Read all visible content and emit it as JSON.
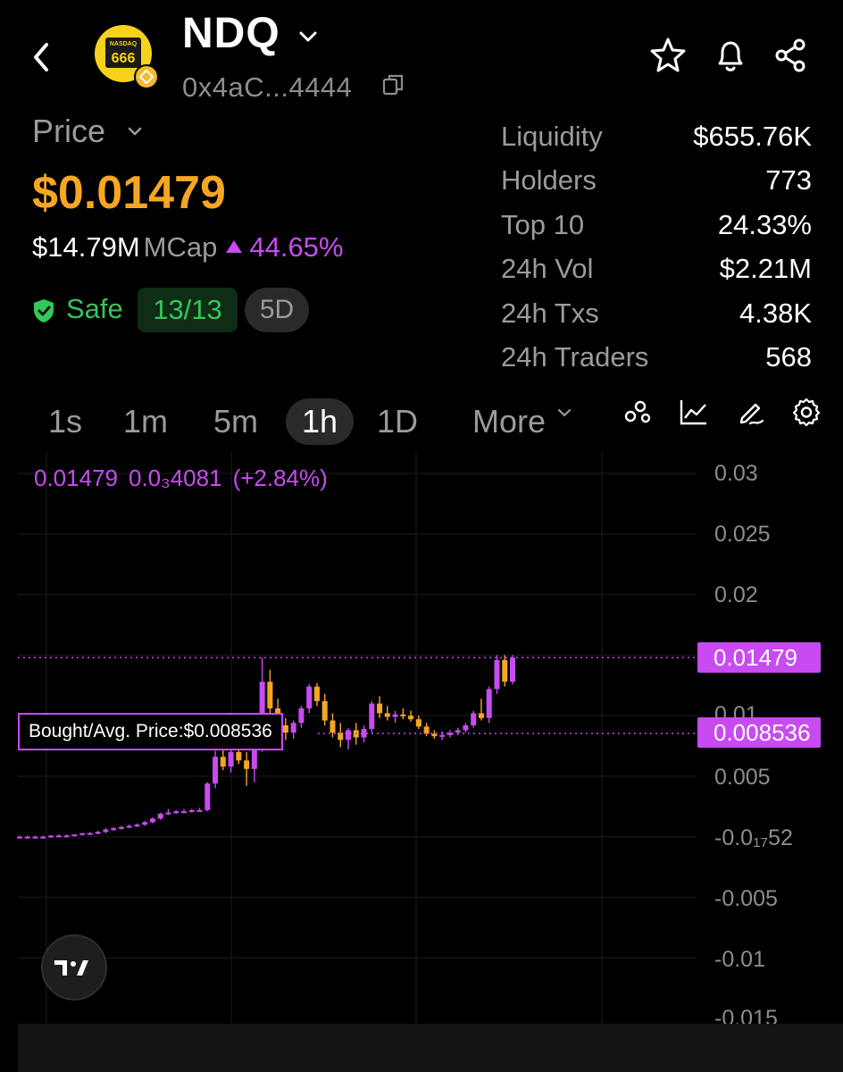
{
  "header": {
    "ticker": "NDQ",
    "address": "0x4aC...4444",
    "logo_top": "NASDAQ",
    "logo_num": "666",
    "icons": [
      "back-icon",
      "chevron-down-icon",
      "copy-icon",
      "star-icon",
      "bell-icon",
      "share-icon"
    ]
  },
  "price": {
    "label": "Price",
    "value": "$0.01479",
    "mcap_value": "$14.79M",
    "mcap_label": "MCap",
    "change": "44.65%",
    "safe_label": "Safe",
    "score": "13/13",
    "age": "5D"
  },
  "stats": [
    {
      "label": "Liquidity",
      "value": "$655.76K"
    },
    {
      "label": "Holders",
      "value": "773"
    },
    {
      "label": "Top 10",
      "value": "24.33%"
    },
    {
      "label": "24h Vol",
      "value": "$2.21M"
    },
    {
      "label": "24h Txs",
      "value": "4.38K"
    },
    {
      "label": "24h Traders",
      "value": "568"
    }
  ],
  "timeframes": {
    "tabs": [
      "1s",
      "1m",
      "5m",
      "1h",
      "1D"
    ],
    "active": "1h",
    "more_label": "More",
    "tool_icons": [
      "indicators-icon",
      "line-chart-icon",
      "draw-icon",
      "settings-icon"
    ]
  },
  "chart_overlay": {
    "last": "0.01479",
    "change_abs": "0.0₃4081",
    "change_pct": "(+2.84%)",
    "current_tag": "0.01479",
    "bought_tag": "0.008536",
    "bought_label": "Bought/Avg. Price:$0.008536"
  },
  "colors": {
    "up": "#c84bf1",
    "down": "#f5a623",
    "price": "#f5a623",
    "safe": "#34c759"
  },
  "chart_data": {
    "type": "candlestick",
    "y_tick_labels": [
      "0.03",
      "0.025",
      "0.02",
      "0.01479",
      "0.01",
      "0.005",
      "-0.0₁₇52",
      "-0.005",
      "-0.01",
      "-0.015"
    ],
    "ylim": [
      -0.015,
      0.03
    ],
    "grid": true,
    "reference_lines": [
      {
        "label": "0.01479",
        "value": 0.01479
      },
      {
        "label": "Bought/Avg. Price:$0.008536",
        "value": 0.008536
      }
    ],
    "candles": [
      {
        "o": 0.0,
        "h": 0.0001,
        "l": -0.0001,
        "c": 0.0
      },
      {
        "o": 0.0,
        "h": 0.0001,
        "l": -0.0001,
        "c": 0.0
      },
      {
        "o": 0.0,
        "h": 0.0001,
        "l": -0.0001,
        "c": 0.0
      },
      {
        "o": 0.0,
        "h": 0.0001,
        "l": -0.0001,
        "c": 0.0
      },
      {
        "o": 0.0,
        "h": 0.0001,
        "l": -0.0001,
        "c": 0.0001
      },
      {
        "o": 0.0001,
        "h": 0.0002,
        "l": 0.0,
        "c": 0.0001
      },
      {
        "o": 0.0001,
        "h": 0.0002,
        "l": 0.0,
        "c": 0.0001
      },
      {
        "o": 0.0001,
        "h": 0.0002,
        "l": 0.0,
        "c": 0.0002
      },
      {
        "o": 0.0002,
        "h": 0.0003,
        "l": 0.0001,
        "c": 0.0003
      },
      {
        "o": 0.0003,
        "h": 0.0004,
        "l": 0.0002,
        "c": 0.0003
      },
      {
        "o": 0.0003,
        "h": 0.0005,
        "l": 0.0002,
        "c": 0.0004
      },
      {
        "o": 0.0004,
        "h": 0.0007,
        "l": 0.0003,
        "c": 0.0006
      },
      {
        "o": 0.0006,
        "h": 0.0008,
        "l": 0.0005,
        "c": 0.0007
      },
      {
        "o": 0.0007,
        "h": 0.0009,
        "l": 0.0006,
        "c": 0.0008
      },
      {
        "o": 0.0008,
        "h": 0.001,
        "l": 0.0007,
        "c": 0.0009
      },
      {
        "o": 0.0009,
        "h": 0.0011,
        "l": 0.0008,
        "c": 0.001
      },
      {
        "o": 0.001,
        "h": 0.0013,
        "l": 0.0009,
        "c": 0.0012
      },
      {
        "o": 0.0012,
        "h": 0.0016,
        "l": 0.0011,
        "c": 0.0015
      },
      {
        "o": 0.0015,
        "h": 0.002,
        "l": 0.0014,
        "c": 0.0019
      },
      {
        "o": 0.0019,
        "h": 0.0023,
        "l": 0.0018,
        "c": 0.002
      },
      {
        "o": 0.002,
        "h": 0.0022,
        "l": 0.0019,
        "c": 0.0021
      },
      {
        "o": 0.0021,
        "h": 0.0023,
        "l": 0.002,
        "c": 0.0021
      },
      {
        "o": 0.0021,
        "h": 0.0023,
        "l": 0.002,
        "c": 0.0022
      },
      {
        "o": 0.0022,
        "h": 0.0024,
        "l": 0.0021,
        "c": 0.0022
      },
      {
        "o": 0.0022,
        "h": 0.0045,
        "l": 0.0021,
        "c": 0.0044
      },
      {
        "o": 0.0044,
        "h": 0.0071,
        "l": 0.004,
        "c": 0.0066
      },
      {
        "o": 0.0066,
        "h": 0.0075,
        "l": 0.0055,
        "c": 0.0058
      },
      {
        "o": 0.0058,
        "h": 0.0072,
        "l": 0.0053,
        "c": 0.007
      },
      {
        "o": 0.007,
        "h": 0.0076,
        "l": 0.006,
        "c": 0.0063
      },
      {
        "o": 0.0063,
        "h": 0.007,
        "l": 0.0042,
        "c": 0.0056
      },
      {
        "o": 0.0056,
        "h": 0.0074,
        "l": 0.0045,
        "c": 0.0072
      },
      {
        "o": 0.0072,
        "h": 0.0148,
        "l": 0.007,
        "c": 0.0128
      },
      {
        "o": 0.0128,
        "h": 0.0138,
        "l": 0.01,
        "c": 0.0106
      },
      {
        "o": 0.0106,
        "h": 0.0114,
        "l": 0.0088,
        "c": 0.0092
      },
      {
        "o": 0.0092,
        "h": 0.0098,
        "l": 0.008,
        "c": 0.0086
      },
      {
        "o": 0.0086,
        "h": 0.0096,
        "l": 0.0081,
        "c": 0.0094
      },
      {
        "o": 0.0094,
        "h": 0.0108,
        "l": 0.009,
        "c": 0.0106
      },
      {
        "o": 0.0106,
        "h": 0.0126,
        "l": 0.0102,
        "c": 0.0124
      },
      {
        "o": 0.0124,
        "h": 0.0127,
        "l": 0.0108,
        "c": 0.0112
      },
      {
        "o": 0.0112,
        "h": 0.0118,
        "l": 0.0092,
        "c": 0.0096
      },
      {
        "o": 0.0096,
        "h": 0.0102,
        "l": 0.0082,
        "c": 0.0086
      },
      {
        "o": 0.0086,
        "h": 0.0094,
        "l": 0.0074,
        "c": 0.008
      },
      {
        "o": 0.008,
        "h": 0.009,
        "l": 0.0072,
        "c": 0.0088
      },
      {
        "o": 0.0088,
        "h": 0.0094,
        "l": 0.0076,
        "c": 0.0082
      },
      {
        "o": 0.0082,
        "h": 0.0092,
        "l": 0.0078,
        "c": 0.0089
      },
      {
        "o": 0.0089,
        "h": 0.0112,
        "l": 0.0086,
        "c": 0.011
      },
      {
        "o": 0.011,
        "h": 0.0116,
        "l": 0.0098,
        "c": 0.0102
      },
      {
        "o": 0.0102,
        "h": 0.0108,
        "l": 0.0096,
        "c": 0.0099
      },
      {
        "o": 0.0099,
        "h": 0.0104,
        "l": 0.0094,
        "c": 0.0101
      },
      {
        "o": 0.0101,
        "h": 0.0106,
        "l": 0.0097,
        "c": 0.01
      },
      {
        "o": 0.01,
        "h": 0.0104,
        "l": 0.0095,
        "c": 0.0097
      },
      {
        "o": 0.0097,
        "h": 0.01,
        "l": 0.0089,
        "c": 0.0091
      },
      {
        "o": 0.0091,
        "h": 0.0094,
        "l": 0.0083,
        "c": 0.0085
      },
      {
        "o": 0.0085,
        "h": 0.0088,
        "l": 0.0081,
        "c": 0.0083
      },
      {
        "o": 0.0083,
        "h": 0.0087,
        "l": 0.008,
        "c": 0.0084
      },
      {
        "o": 0.0084,
        "h": 0.0088,
        "l": 0.0082,
        "c": 0.0086
      },
      {
        "o": 0.0086,
        "h": 0.009,
        "l": 0.0084,
        "c": 0.0088
      },
      {
        "o": 0.0088,
        "h": 0.0094,
        "l": 0.0086,
        "c": 0.0092
      },
      {
        "o": 0.0092,
        "h": 0.0104,
        "l": 0.009,
        "c": 0.0102
      },
      {
        "o": 0.0102,
        "h": 0.0114,
        "l": 0.0096,
        "c": 0.0098
      },
      {
        "o": 0.0098,
        "h": 0.0124,
        "l": 0.0094,
        "c": 0.0122
      },
      {
        "o": 0.0122,
        "h": 0.015,
        "l": 0.0118,
        "c": 0.0146
      },
      {
        "o": 0.0146,
        "h": 0.015,
        "l": 0.0124,
        "c": 0.0128
      },
      {
        "o": 0.0128,
        "h": 0.015,
        "l": 0.0126,
        "c": 0.0148
      }
    ]
  }
}
